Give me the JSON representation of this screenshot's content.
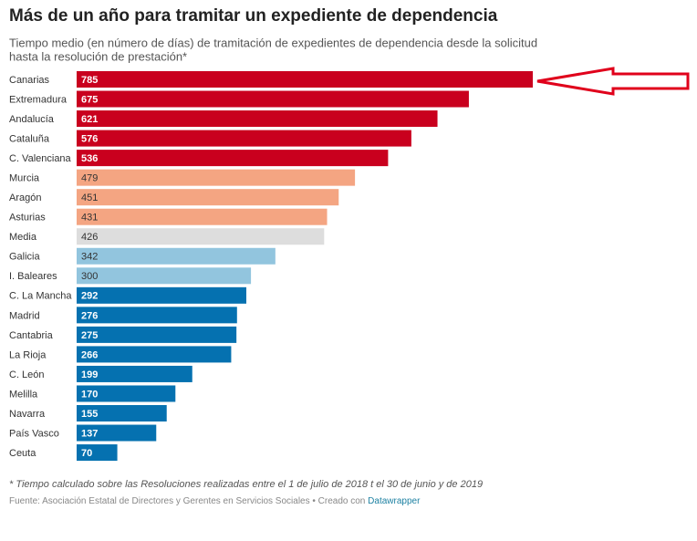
{
  "chart_data": {
    "type": "bar",
    "title": "Más de un año para tramitar un expediente de dependencia",
    "subtitle": [
      "Tiempo medio (en número de días) de tramitación de expedientes de dependencia desde la solicitud",
      "hasta la resolución de prestación*"
    ],
    "categories": [
      "Canarias",
      "Extremadura",
      "Andalucía",
      "Cataluña",
      "C. Valenciana",
      "Murcia",
      "Aragón",
      "Asturias",
      "Media",
      "Galicia",
      "I. Baleares",
      "C. La Mancha",
      "Madrid",
      "Cantabria",
      "La Rioja",
      "C. León",
      "Melilla",
      "Navarra",
      "País Vasco",
      "Ceuta"
    ],
    "values": [
      785,
      675,
      621,
      576,
      536,
      479,
      451,
      431,
      426,
      342,
      300,
      292,
      276,
      275,
      266,
      199,
      170,
      155,
      137,
      70
    ],
    "colors": [
      "#c9001e",
      "#c9001e",
      "#c9001e",
      "#c9001e",
      "#c9001e",
      "#f4a582",
      "#f4a582",
      "#f4a582",
      "#dddddd",
      "#92c5de",
      "#92c5de",
      "#0571b0",
      "#0571b0",
      "#0571b0",
      "#0571b0",
      "#0571b0",
      "#0571b0",
      "#0571b0",
      "#0571b0",
      "#0571b0"
    ],
    "footnote": "* Tiempo calculado sobre las Resoluciones realizadas entre el 1 de julio de 2018 t el 30 de junio y de 2019",
    "source": "Fuente: Asociación Estatal de Directores y Gerentes en Servicios Sociales • Creado con",
    "credit": "Datawrapper"
  }
}
